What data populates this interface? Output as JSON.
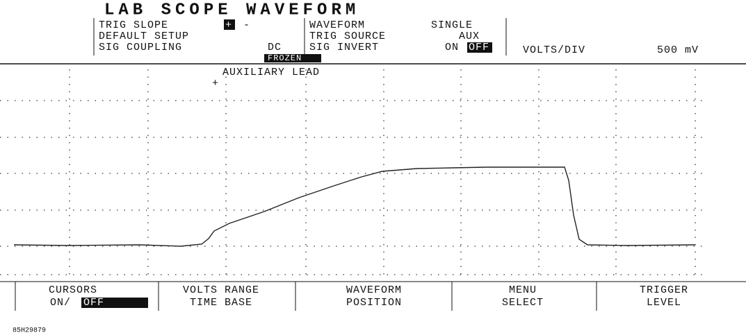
{
  "header": {
    "title": "LAB SCOPE WAVEFORM",
    "left": [
      {
        "label": "TRIG SLOPE",
        "options": [
          "+",
          "-"
        ]
      },
      {
        "label": "DEFAULT SETUP"
      },
      {
        "label": "SIG COUPLING",
        "value": "DC"
      }
    ],
    "status": "FROZEN",
    "right": [
      {
        "label": "WAVEFORM",
        "value": "SINGLE"
      },
      {
        "label": "TRIG SOURCE",
        "value": "AUX"
      },
      {
        "label": "SIG INVERT",
        "options": [
          "ON",
          "OFF"
        ]
      }
    ],
    "volts_div": {
      "label": "VOLTS/DIV",
      "value": "500 mV"
    }
  },
  "trace_label": "AUXILIARY LEAD",
  "softkeys": [
    {
      "line1": "CURSORS",
      "line2": "ON/",
      "highlight": "OFF"
    },
    {
      "line1": "VOLTS RANGE",
      "line2": "TIME BASE"
    },
    {
      "line1": "WAVEFORM",
      "line2": "POSITION"
    },
    {
      "line1": "MENU",
      "line2": "SELECT"
    },
    {
      "line1": "TRIGGER",
      "line2": "LEVEL"
    }
  ],
  "figure_code": "85H29879"
}
